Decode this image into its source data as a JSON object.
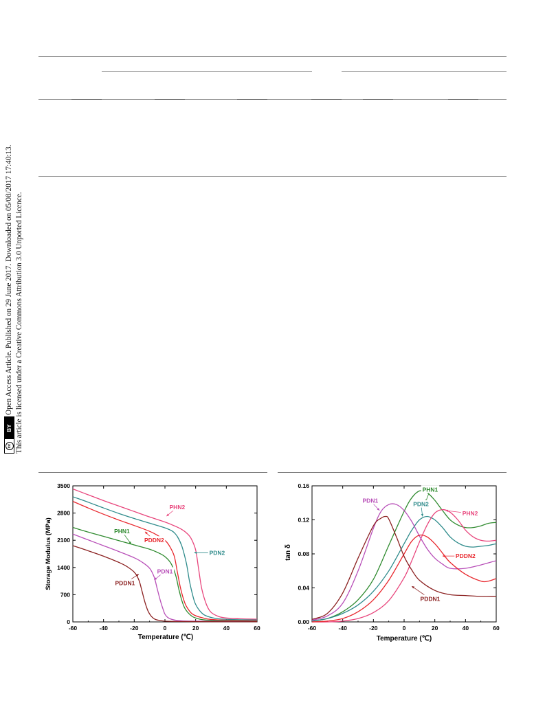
{
  "sidebar": {
    "line1": "Open Access Article. Published on 29 June 2017. Downloaded on 05/08/2017 17:40:13.",
    "line2": "This article is licensed under a Creative Commons Attribution 3.0 Unported Licence.",
    "badge_cc": "cc",
    "badge_by": "BY"
  },
  "chart_data": [
    {
      "type": "line",
      "title": "",
      "xlabel": "Temperature (℃)",
      "ylabel": "Storage Modulus (MPa)",
      "xlim": [
        -60,
        60
      ],
      "ylim": [
        0,
        3500
      ],
      "xticks": [
        -60,
        -40,
        -20,
        0,
        20,
        40,
        60
      ],
      "yticks": [
        0,
        700,
        1400,
        2100,
        2800,
        3500
      ],
      "xtick_labels": [
        "-60",
        "-40",
        "-20",
        "0",
        "20",
        "40",
        "60"
      ],
      "ytick_labels": [
        "0",
        "700",
        "1400",
        "2100",
        "2800",
        "3500"
      ],
      "series": [
        {
          "name": "PHN2",
          "color": "#e8457c",
          "x": [
            -60,
            -50,
            -40,
            -30,
            -20,
            -10,
            0,
            5,
            10,
            14,
            17,
            20,
            22,
            24,
            27,
            30,
            35,
            40,
            50,
            60
          ],
          "y": [
            3420,
            3270,
            3120,
            2980,
            2840,
            2700,
            2570,
            2490,
            2400,
            2290,
            2150,
            1850,
            1350,
            850,
            450,
            250,
            140,
            100,
            80,
            70
          ]
        },
        {
          "name": "PDN2",
          "color": "#2e8b8b",
          "x": [
            -60,
            -50,
            -40,
            -30,
            -20,
            -10,
            0,
            5,
            8,
            11,
            14,
            16,
            18,
            20,
            24,
            28,
            35,
            45,
            60
          ],
          "y": [
            3220,
            3080,
            2930,
            2790,
            2660,
            2540,
            2420,
            2330,
            2200,
            1950,
            1500,
            1050,
            700,
            450,
            230,
            140,
            80,
            60,
            50
          ]
        },
        {
          "name": "PDDN2",
          "color": "#e8262c",
          "x": [
            -60,
            -50,
            -40,
            -30,
            -20,
            -10,
            -5,
            0,
            3,
            6,
            8,
            10,
            12,
            14,
            18,
            25,
            35,
            60
          ],
          "y": [
            3100,
            2930,
            2770,
            2620,
            2480,
            2330,
            2230,
            2100,
            1950,
            1700,
            1300,
            900,
            600,
            400,
            200,
            100,
            50,
            30
          ]
        },
        {
          "name": "PHN1",
          "color": "#2e8a2e",
          "x": [
            -60,
            -50,
            -40,
            -30,
            -20,
            -10,
            -5,
            0,
            4,
            7,
            9,
            11,
            13,
            16,
            20,
            30,
            60
          ],
          "y": [
            2430,
            2310,
            2200,
            2090,
            1980,
            1870,
            1790,
            1680,
            1500,
            1200,
            850,
            550,
            350,
            200,
            100,
            40,
            20
          ]
        },
        {
          "name": "PDN1",
          "color": "#b84fb8",
          "x": [
            -60,
            -50,
            -40,
            -30,
            -20,
            -15,
            -10,
            -7,
            -5,
            -3,
            -1,
            0,
            2,
            5,
            10,
            20,
            60
          ],
          "y": [
            2260,
            2110,
            1960,
            1810,
            1650,
            1540,
            1380,
            1150,
            850,
            550,
            300,
            200,
            110,
            60,
            30,
            20,
            10
          ]
        },
        {
          "name": "PDDN1",
          "color": "#8b2020",
          "x": [
            -60,
            -50,
            -40,
            -30,
            -25,
            -20,
            -17,
            -15,
            -13,
            -11,
            -9,
            -7,
            -5,
            0,
            10,
            30,
            60
          ],
          "y": [
            1960,
            1830,
            1690,
            1530,
            1430,
            1280,
            1080,
            800,
            500,
            280,
            150,
            80,
            50,
            20,
            10,
            5,
            5
          ]
        }
      ],
      "annotations": [
        {
          "text": "PHN2",
          "x": 8,
          "y": 2950,
          "color": "#e8457c",
          "target": [
            1,
            2720
          ]
        },
        {
          "text": "PDN2",
          "x": 34,
          "y": 1780,
          "color": "#2e8b8b",
          "target": [
            19,
            1780
          ]
        },
        {
          "text": "PDDN2",
          "x": -7,
          "y": 2100,
          "color": "#e8262c",
          "target": [
            -13,
            2320
          ]
        },
        {
          "text": "PHN1",
          "x": -28,
          "y": 2330,
          "color": "#2e8a2e",
          "target": [
            -22,
            2000
          ]
        },
        {
          "text": "PDN1",
          "x": 0,
          "y": 1300,
          "color": "#b84fb8",
          "target": [
            -7,
            1080
          ]
        },
        {
          "text": "PDDN1",
          "x": -26,
          "y": 1000,
          "color": "#8b2020",
          "target": [
            -17,
            1230
          ]
        }
      ]
    },
    {
      "type": "line",
      "title": "",
      "xlabel": "Temperature (℃)",
      "ylabel": "tan δ",
      "xlim": [
        -60,
        60
      ],
      "ylim": [
        0,
        0.16
      ],
      "xticks": [
        -60,
        -40,
        -20,
        0,
        20,
        40,
        60
      ],
      "yticks": [
        0,
        0.04,
        0.08,
        0.12,
        0.16
      ],
      "xtick_labels": [
        "-60",
        "-40",
        "-20",
        "0",
        "20",
        "40",
        "60"
      ],
      "ytick_labels": [
        "0.00",
        "0.04",
        "0.08",
        "0.12",
        "0.16"
      ],
      "series": [
        {
          "name": "PHN1",
          "color": "#2e8a2e",
          "x": [
            -60,
            -50,
            -40,
            -30,
            -20,
            -10,
            0,
            5,
            10,
            15,
            20,
            25,
            30,
            35,
            40,
            45,
            50,
            55,
            60
          ],
          "y": [
            0.001,
            0.004,
            0.012,
            0.026,
            0.05,
            0.09,
            0.13,
            0.146,
            0.154,
            0.152,
            0.143,
            0.131,
            0.12,
            0.114,
            0.111,
            0.111,
            0.113,
            0.116,
            0.117
          ]
        },
        {
          "name": "PDN2",
          "color": "#2e8b8b",
          "x": [
            -60,
            -50,
            -40,
            -30,
            -20,
            -10,
            0,
            5,
            10,
            15,
            20,
            25,
            30,
            35,
            40,
            45,
            50,
            55,
            60
          ],
          "y": [
            0.001,
            0.004,
            0.01,
            0.02,
            0.036,
            0.06,
            0.092,
            0.108,
            0.12,
            0.124,
            0.12,
            0.111,
            0.1,
            0.093,
            0.089,
            0.088,
            0.089,
            0.09,
            0.092
          ]
        },
        {
          "name": "PHN2",
          "color": "#e8457c",
          "x": [
            -60,
            -50,
            -40,
            -30,
            -20,
            -10,
            0,
            5,
            10,
            15,
            20,
            25,
            30,
            35,
            40,
            45,
            50,
            55,
            60
          ],
          "y": [
            0.0,
            0.0,
            0.001,
            0.004,
            0.011,
            0.025,
            0.052,
            0.072,
            0.094,
            0.114,
            0.128,
            0.132,
            0.129,
            0.12,
            0.108,
            0.1,
            0.096,
            0.095,
            0.096
          ]
        },
        {
          "name": "PDN1",
          "color": "#b84fb8",
          "x": [
            -60,
            -50,
            -40,
            -30,
            -20,
            -15,
            -10,
            -5,
            0,
            5,
            10,
            15,
            20,
            25,
            30,
            40,
            50,
            60
          ],
          "y": [
            0.002,
            0.007,
            0.022,
            0.06,
            0.11,
            0.13,
            0.138,
            0.138,
            0.131,
            0.118,
            0.101,
            0.086,
            0.075,
            0.068,
            0.063,
            0.063,
            0.067,
            0.072
          ]
        },
        {
          "name": "PDDN2",
          "color": "#e8262c",
          "x": [
            -60,
            -50,
            -40,
            -30,
            -20,
            -10,
            0,
            5,
            10,
            15,
            20,
            25,
            30,
            40,
            50,
            55,
            60
          ],
          "y": [
            0.0,
            0.001,
            0.004,
            0.012,
            0.026,
            0.049,
            0.08,
            0.095,
            0.102,
            0.1,
            0.092,
            0.081,
            0.07,
            0.056,
            0.048,
            0.048,
            0.051
          ]
        },
        {
          "name": "PDDN1",
          "color": "#8b2020",
          "x": [
            -60,
            -50,
            -40,
            -30,
            -20,
            -15,
            -12,
            -10,
            -5,
            0,
            5,
            10,
            20,
            30,
            40,
            50,
            60
          ],
          "y": [
            0.003,
            0.01,
            0.034,
            0.075,
            0.113,
            0.122,
            0.124,
            0.121,
            0.1,
            0.077,
            0.061,
            0.049,
            0.037,
            0.032,
            0.031,
            0.03,
            0.03
          ]
        }
      ],
      "annotations": [
        {
          "text": "PHN1",
          "x": 17,
          "y": 0.1555,
          "color": "#2e8a2e",
          "target": [
            14,
            0.141
          ]
        },
        {
          "text": "PDN1",
          "x": -22,
          "y": 0.1425,
          "color": "#b84fb8",
          "target": [
            -16,
            0.131
          ]
        },
        {
          "text": "PDN2",
          "x": 11,
          "y": 0.1385,
          "color": "#2e8b8b",
          "target": [
            12,
            0.124
          ]
        },
        {
          "text": "PHN2",
          "x": 43,
          "y": 0.1275,
          "color": "#e8457c",
          "target": [
            27,
            0.131
          ]
        },
        {
          "text": "PDDN2",
          "x": 40,
          "y": 0.0775,
          "color": "#e8262c",
          "target": [
            25,
            0.0775
          ]
        },
        {
          "text": "PDDN1",
          "x": 17,
          "y": 0.027,
          "color": "#8b2020",
          "target": [
            5,
            0.042
          ]
        }
      ]
    }
  ]
}
